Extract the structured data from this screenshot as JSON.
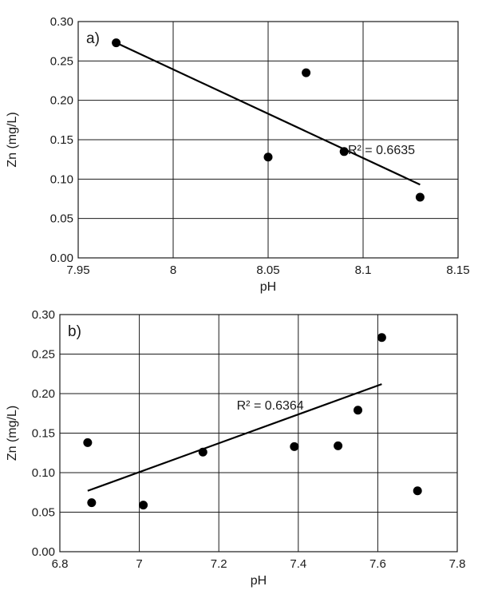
{
  "chart_data": [
    {
      "type": "scatter",
      "panel_label": "a)",
      "xlabel": "pH",
      "ylabel": "Zn (mg/L)",
      "xlim": [
        7.95,
        8.15
      ],
      "ylim": [
        0.0,
        0.3
      ],
      "x_ticks": [
        "7.95",
        "8",
        "8.05",
        "8.1",
        "8.15"
      ],
      "y_ticks": [
        "0.00",
        "0.05",
        "0.10",
        "0.15",
        "0.20",
        "0.25",
        "0.30"
      ],
      "points": [
        {
          "x": 7.97,
          "y": 0.273
        },
        {
          "x": 8.05,
          "y": 0.128
        },
        {
          "x": 8.07,
          "y": 0.235
        },
        {
          "x": 8.09,
          "y": 0.135
        },
        {
          "x": 8.13,
          "y": 0.077
        }
      ],
      "trendline": {
        "x": [
          7.97,
          8.13
        ],
        "y": [
          0.273,
          0.093
        ]
      },
      "r2_text": "R² = 0.6635",
      "r2_anchor": {
        "x": 8.092,
        "y": 0.132
      },
      "grid": true
    },
    {
      "type": "scatter",
      "panel_label": "b)",
      "xlabel": "pH",
      "ylabel": "Zn (mg/L)",
      "xlim": [
        6.8,
        7.8
      ],
      "ylim": [
        0.0,
        0.3
      ],
      "x_ticks": [
        "6.8",
        "7",
        "7.2",
        "7.4",
        "7.6",
        "7.8"
      ],
      "y_ticks": [
        "0.00",
        "0.05",
        "0.10",
        "0.15",
        "0.20",
        "0.25",
        "0.30"
      ],
      "points": [
        {
          "x": 6.87,
          "y": 0.138
        },
        {
          "x": 6.88,
          "y": 0.062
        },
        {
          "x": 7.01,
          "y": 0.059
        },
        {
          "x": 7.16,
          "y": 0.126
        },
        {
          "x": 7.39,
          "y": 0.133
        },
        {
          "x": 7.5,
          "y": 0.134
        },
        {
          "x": 7.55,
          "y": 0.179
        },
        {
          "x": 7.61,
          "y": 0.271
        },
        {
          "x": 7.7,
          "y": 0.077
        }
      ],
      "trendline": {
        "x": [
          6.87,
          7.61
        ],
        "y": [
          0.077,
          0.212
        ]
      },
      "r2_text": "R² = 0.6364",
      "r2_anchor": {
        "x": 7.245,
        "y": 0.18
      },
      "grid": true
    }
  ]
}
